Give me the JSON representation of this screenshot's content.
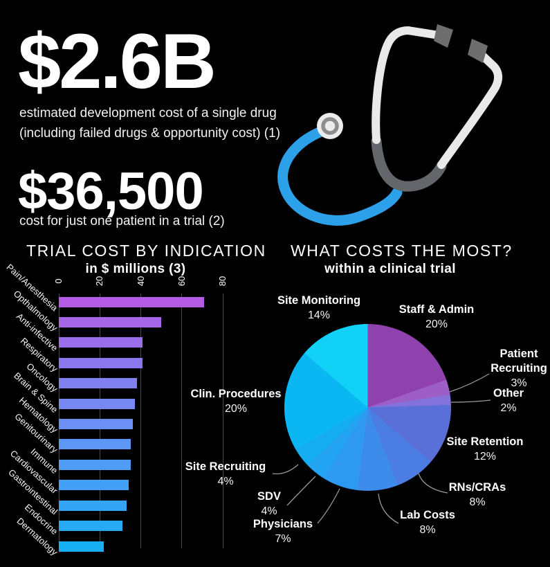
{
  "hero": {
    "headline_value": "$2.6B",
    "headline_caption_line1": "estimated development cost of a single drug",
    "headline_caption_line2": "(including failed drugs & opportunity cost) (1)",
    "secondary_value": "$36,500",
    "secondary_caption": "cost for just one patient in a trial (2)"
  },
  "bar_section": {
    "title": "TRIAL COST BY INDICATION",
    "subtitle": "in $ millions (3)"
  },
  "pie_section": {
    "title": "WHAT COSTS THE MOST?",
    "subtitle": "within a clinical trial"
  },
  "icons": {
    "stethoscope": "stethoscope-illustration"
  },
  "colors": {
    "background": "#000000",
    "text": "#ffffff",
    "gridline": "#4a4a4a",
    "leader_line": "#999999",
    "stethoscope_tube": "#2da0ea",
    "stethoscope_metal": "#e9e9e9",
    "stethoscope_gray": "#63676b"
  },
  "chart_data": [
    {
      "type": "bar",
      "orientation": "horizontal",
      "title": "TRIAL COST BY INDICATION",
      "subtitle": "in $ millions (3)",
      "xlim": [
        0,
        80
      ],
      "ticks": [
        0,
        20,
        40,
        60,
        80
      ],
      "grid": true,
      "categories": [
        "Pain/Anesthesia",
        "Opthalmology",
        "Anti-infective",
        "Respiratory",
        "Oncology",
        "Brain & Spine",
        "Hematology",
        "Genitourinary",
        "Immune",
        "Cardiovascular",
        "Gastrointestinal",
        "Endocrine",
        "Dermatology"
      ],
      "values": [
        71,
        50,
        41,
        41,
        38,
        37,
        36,
        35,
        35,
        34,
        33,
        31,
        22
      ],
      "bar_colors": [
        "#b45be3",
        "#a765e8",
        "#996eeb",
        "#8b77ee",
        "#8180f0",
        "#7788f2",
        "#6b8ff4",
        "#5e96f6",
        "#4f9cf7",
        "#42a0f6",
        "#33a4f5",
        "#27a9f4",
        "#17aef4"
      ]
    },
    {
      "type": "pie",
      "title": "WHAT COSTS THE MOST?",
      "subtitle": "within a clinical trial",
      "start_angle_deg": 0,
      "direction": "clockwise",
      "slices": [
        {
          "label": "Staff & Admin",
          "pct": 20,
          "color": "#8f42ad"
        },
        {
          "label": "Patient Recruiting",
          "pct": 3,
          "color": "#9d5ec6"
        },
        {
          "label": "Other",
          "pct": 2,
          "color": "#8272da"
        },
        {
          "label": "Site Retention",
          "pct": 12,
          "color": "#5a70d8"
        },
        {
          "label": "RNs/CRAs",
          "pct": 8,
          "color": "#4b7de2"
        },
        {
          "label": "Lab Costs",
          "pct": 8,
          "color": "#3d8bea"
        },
        {
          "label": "Physicians",
          "pct": 7,
          "color": "#2e99f0"
        },
        {
          "label": "SDV",
          "pct": 4,
          "color": "#22a4f2"
        },
        {
          "label": "Site Recruiting",
          "pct": 4,
          "color": "#15adf2"
        },
        {
          "label": "Clin. Procedures",
          "pct": 20,
          "color": "#0ab7f2"
        },
        {
          "label": "Site Monitoring",
          "pct": 14,
          "color": "#12d1f7"
        }
      ]
    }
  ]
}
